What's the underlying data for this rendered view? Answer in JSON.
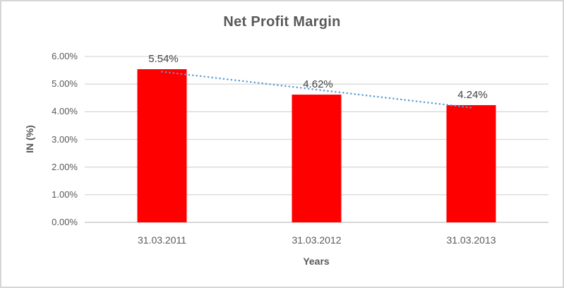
{
  "chart_data": {
    "type": "bar",
    "title": "Net Profit Margin",
    "categories": [
      "31.03.2011",
      "31.03.2012",
      "31.03.2013"
    ],
    "values": [
      5.54,
      4.62,
      4.24
    ],
    "data_labels": [
      "5.54%",
      "4.62%",
      "4.24%"
    ],
    "xlabel": "Years",
    "ylabel": "IN (%)",
    "ylim": [
      0,
      6
    ],
    "ytick_values": [
      0,
      1,
      2,
      3,
      4,
      5,
      6
    ],
    "ytick_labels": [
      "0.00%",
      "1.00%",
      "2.00%",
      "3.00%",
      "4.00%",
      "5.00%",
      "6.00%"
    ],
    "grid": true,
    "legend": false,
    "trendline": {
      "type": "linear",
      "style": "dotted"
    },
    "colors": {
      "bar": "#FF0000",
      "trendline": "#5B9BD5",
      "gridline": "#D9D9D9",
      "axis_line": "#BFBFBF",
      "text": "#595959",
      "data_label": "#404040",
      "border": "#D6D6D6",
      "background": "#FFFFFF"
    }
  }
}
